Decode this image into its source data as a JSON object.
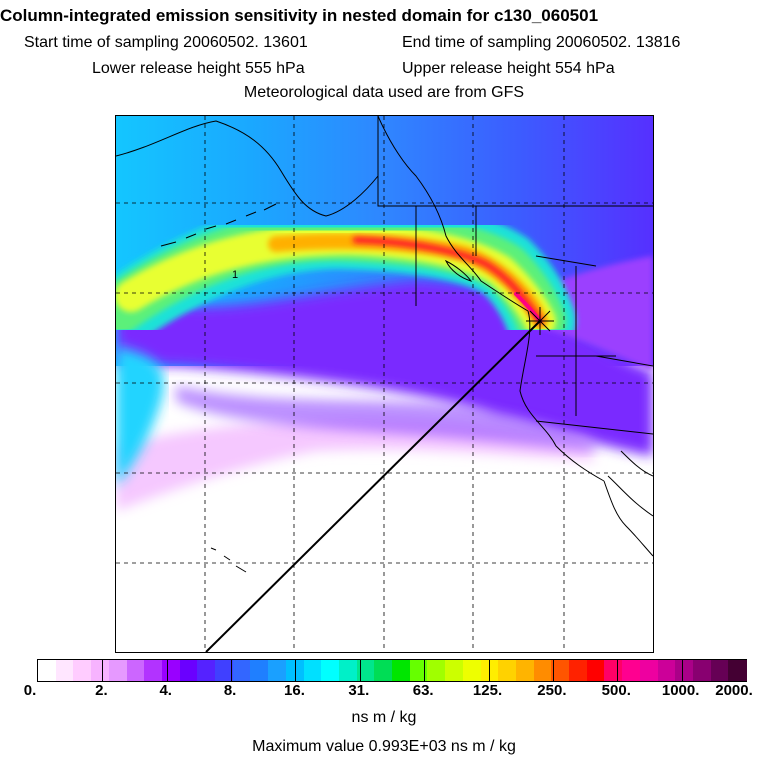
{
  "header": {
    "title": "Column-integrated emission sensitivity in nested domain for c130_060501",
    "start": "Start time of sampling 20060502. 13601",
    "end": "End time of sampling 20060502. 13816",
    "lower": "Lower release height  555 hPa",
    "upper": "Upper release height  554 hPa",
    "met": "Meteorological data used are from GFS"
  },
  "map": {
    "contour_label": "1"
  },
  "colorbar": {
    "ticks": [
      "0.",
      "2.",
      "4.",
      "8.",
      "16.",
      "31.",
      "63.",
      "125.",
      "250.",
      "500.",
      "1000.",
      "2000."
    ],
    "units": "ns m / kg",
    "colors": [
      "#ffffff",
      "#ffe6ff",
      "#ffccff",
      "#f7b3ff",
      "#e699ff",
      "#cc66ff",
      "#b233ff",
      "#9900ff",
      "#6a00ff",
      "#5522ff",
      "#4040ff",
      "#3366ff",
      "#1f7fff",
      "#1aa0ff",
      "#00bfff",
      "#00e0ff",
      "#00ffff",
      "#00f0c8",
      "#00e68c",
      "#00dd55",
      "#00e600",
      "#66ff00",
      "#a0ff00",
      "#ccff00",
      "#eeff00",
      "#ffee00",
      "#ffd200",
      "#ffb400",
      "#ff8c00",
      "#ff5500",
      "#ff2200",
      "#ff0000",
      "#ff0066",
      "#ff0090",
      "#ee00a0",
      "#cc0099",
      "#aa0088",
      "#880070",
      "#660055",
      "#440033"
    ]
  },
  "footer": {
    "max_value": "Maximum value  0.993E+03 ns m / kg"
  }
}
